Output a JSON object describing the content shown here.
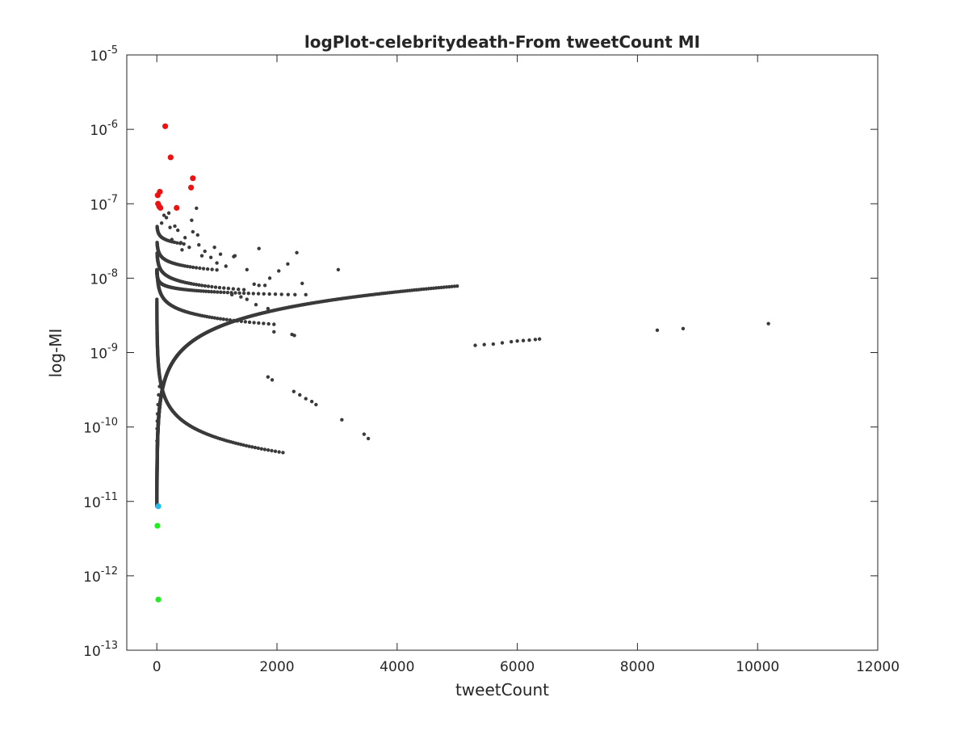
{
  "chart_data": {
    "type": "scatter",
    "title": "logPlot-celebritydeath-From tweetCount MI",
    "xlabel": "tweetCount",
    "ylabel": "log-MI",
    "xlim": [
      -500,
      12000
    ],
    "ylim": [
      1e-13,
      1e-05
    ],
    "yscale": "log",
    "grid": false,
    "legend": "none",
    "xticks": [
      {
        "value": 0,
        "label": "0"
      },
      {
        "value": 2000,
        "label": "2000"
      },
      {
        "value": 4000,
        "label": "4000"
      },
      {
        "value": 6000,
        "label": "6000"
      },
      {
        "value": 8000,
        "label": "8000"
      },
      {
        "value": 10000,
        "label": "10000"
      },
      {
        "value": 12000,
        "label": "12000"
      }
    ],
    "yticks": [
      {
        "value": 1e-13,
        "base": "10",
        "exp": "-13"
      },
      {
        "value": 1e-12,
        "base": "10",
        "exp": "-12"
      },
      {
        "value": 1e-11,
        "base": "10",
        "exp": "-11"
      },
      {
        "value": 1e-10,
        "base": "10",
        "exp": "-10"
      },
      {
        "value": 1e-09,
        "base": "10",
        "exp": "-9"
      },
      {
        "value": 1e-08,
        "base": "10",
        "exp": "-8"
      },
      {
        "value": 1e-07,
        "base": "10",
        "exp": "-7"
      },
      {
        "value": 1e-06,
        "base": "10",
        "exp": "-6"
      },
      {
        "value": 1e-05,
        "base": "10",
        "exp": "-5"
      }
    ],
    "colors": {
      "main": "#3a3a3a",
      "high": "#ee1111",
      "low_green": "#22ee22",
      "low_cyan": "#22bbee",
      "axis": "#262626"
    },
    "series": [
      {
        "color_key": "main",
        "marker_size": 2.2,
        "curve_families": [
          {
            "type": "power",
            "a": 5.2e-09,
            "b": -0.62,
            "x_range": [
              1,
              2100
            ],
            "n": 210
          },
          {
            "type": "power",
            "a": 2e-08,
            "b": -0.28,
            "x_range": [
              5,
              1950
            ],
            "n": 110
          },
          {
            "type": "power",
            "a": 1.3e-08,
            "b": -0.1,
            "x_range": [
              1,
              2300
            ],
            "n": 130
          },
          {
            "type": "power",
            "a": 3e-08,
            "b": -0.2,
            "x_range": [
              5,
              1450
            ],
            "n": 75
          },
          {
            "type": "power",
            "a": 3.9e-08,
            "b": -0.16,
            "x_range": [
              5,
              1000
            ],
            "n": 55
          },
          {
            "type": "power",
            "a": 6e-08,
            "b": -0.12,
            "x_range": [
              5,
              450
            ],
            "n": 28
          },
          {
            "type": "power",
            "a": 8.6e-12,
            "b": 0.8,
            "x_range": [
              1,
              5000
            ],
            "n": 800
          }
        ],
        "points": [
          [
            3,
            6.5e-11
          ],
          [
            5,
            9.5e-11
          ],
          [
            8,
            1.2e-10
          ],
          [
            12,
            1.5e-10
          ],
          [
            20,
            2e-10
          ],
          [
            30,
            2.7e-10
          ],
          [
            45,
            3.5e-10
          ],
          [
            60,
            4.2e-10
          ],
          [
            1850,
            4.7e-10
          ],
          [
            1920,
            4.3e-10
          ],
          [
            2280,
            3e-10
          ],
          [
            2380,
            2.7e-10
          ],
          [
            2480,
            2.4e-10
          ],
          [
            2580,
            2.2e-10
          ],
          [
            2650,
            2e-10
          ],
          [
            3080,
            1.25e-10
          ],
          [
            3450,
            8e-11
          ],
          [
            3520,
            7e-11
          ],
          [
            2250,
            1.75e-09
          ],
          [
            2290,
            1.7e-09
          ],
          [
            1950,
            1.9e-09
          ],
          [
            1850,
            3.9e-09
          ],
          [
            1650,
            4.4e-09
          ],
          [
            1500,
            5.2e-09
          ],
          [
            1400,
            5.6e-09
          ],
          [
            1250,
            6e-09
          ],
          [
            2480,
            6e-09
          ],
          [
            2420,
            8.5e-09
          ],
          [
            1800,
            8e-09
          ],
          [
            1700,
            8e-09
          ],
          [
            1620,
            8.3e-09
          ],
          [
            1880,
            1e-08
          ],
          [
            2030,
            1.25e-08
          ],
          [
            2180,
            1.55e-08
          ],
          [
            2330,
            2.2e-08
          ],
          [
            1700,
            2.5e-08
          ],
          [
            1300,
            2e-08
          ],
          [
            1280,
            1.95e-08
          ],
          [
            1060,
            2.1e-08
          ],
          [
            960,
            2.6e-08
          ],
          [
            800,
            2.3e-08
          ],
          [
            1500,
            1.3e-08
          ],
          [
            3020,
            1.3e-08
          ],
          [
            5300,
            1.25e-09
          ],
          [
            5450,
            1.28e-09
          ],
          [
            5600,
            1.3e-09
          ],
          [
            5750,
            1.35e-09
          ],
          [
            5900,
            1.4e-09
          ],
          [
            6000,
            1.43e-09
          ],
          [
            6100,
            1.45e-09
          ],
          [
            6200,
            1.47e-09
          ],
          [
            6300,
            1.5e-09
          ],
          [
            6370,
            1.52e-09
          ],
          [
            8330,
            2e-09
          ],
          [
            8760,
            2.1e-09
          ],
          [
            10180,
            2.45e-09
          ],
          [
            660,
            8.7e-08
          ],
          [
            580,
            6e-08
          ],
          [
            300,
            5e-08
          ],
          [
            400,
            3e-08
          ],
          [
            470,
            3.5e-08
          ],
          [
            680,
            3.8e-08
          ],
          [
            600,
            4.2e-08
          ],
          [
            350,
            4.4e-08
          ],
          [
            250,
            3.3e-08
          ],
          [
            700,
            2.8e-08
          ],
          [
            540,
            2.6e-08
          ],
          [
            420,
            2.4e-08
          ],
          [
            750,
            2e-08
          ],
          [
            900,
            1.9e-08
          ],
          [
            1000,
            1.6e-08
          ],
          [
            1150,
            1.45e-08
          ],
          [
            120,
            7e-08
          ],
          [
            160,
            6.5e-08
          ],
          [
            80,
            5.5e-08
          ],
          [
            200,
            7.5e-08
          ],
          [
            220,
            4.8e-08
          ]
        ]
      },
      {
        "color_key": "high",
        "marker_size": 3.6,
        "points": [
          [
            140,
            1.1e-06
          ],
          [
            230,
            4.2e-07
          ],
          [
            600,
            2.2e-07
          ],
          [
            570,
            1.65e-07
          ],
          [
            50,
            1.45e-07
          ],
          [
            15,
            1.3e-07
          ],
          [
            330,
            8.8e-08
          ],
          [
            20,
            1e-07
          ],
          [
            40,
            9.2e-08
          ],
          [
            60,
            8.8e-08
          ]
        ]
      },
      {
        "color_key": "low_cyan",
        "marker_size": 3.6,
        "points": [
          [
            25,
            8.6e-12
          ]
        ]
      },
      {
        "color_key": "low_green",
        "marker_size": 3.6,
        "points": [
          [
            10,
            4.7e-12
          ],
          [
            25,
            4.8e-13
          ]
        ]
      }
    ]
  }
}
